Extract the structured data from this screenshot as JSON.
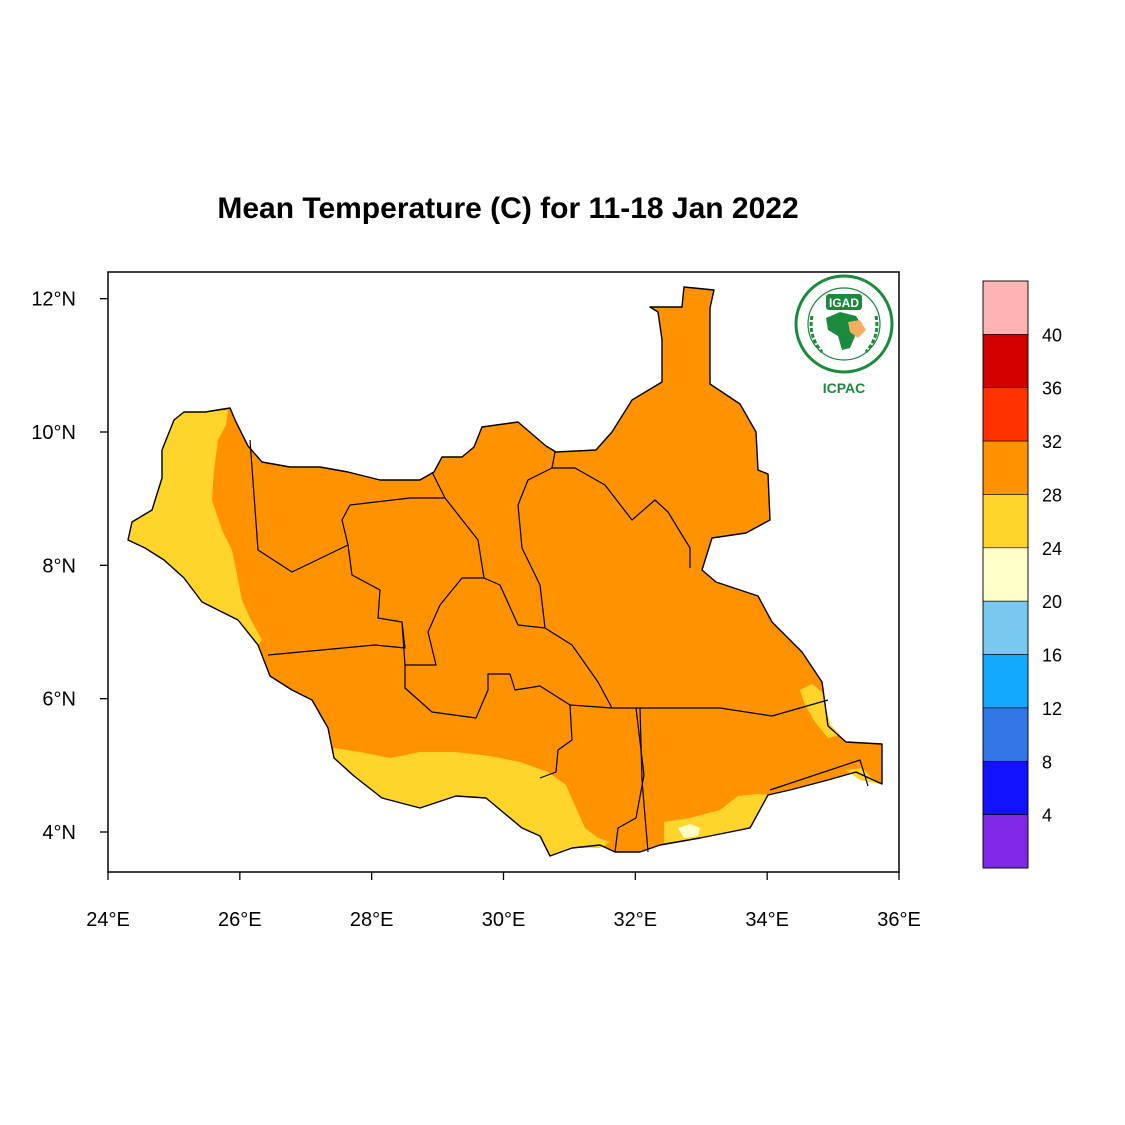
{
  "title": "Mean Temperature (C) for 11-18 Jan 2022",
  "map": {
    "lon_range": [
      24,
      36
    ],
    "lat_range": [
      3.4,
      12.4
    ],
    "x_ticks": [
      {
        "value": 24,
        "label": "24°E"
      },
      {
        "value": 26,
        "label": "26°E"
      },
      {
        "value": 28,
        "label": "28°E"
      },
      {
        "value": 30,
        "label": "30°E"
      },
      {
        "value": 32,
        "label": "32°E"
      },
      {
        "value": 34,
        "label": "34°E"
      },
      {
        "value": 36,
        "label": "36°E"
      }
    ],
    "y_ticks": [
      {
        "value": 4,
        "label": "4°N"
      },
      {
        "value": 6,
        "label": "6°N"
      },
      {
        "value": 8,
        "label": "8°N"
      },
      {
        "value": 10,
        "label": "10°N"
      },
      {
        "value": 12,
        "label": "12°N"
      }
    ],
    "dominant_class_color": "#ff9200",
    "secondary_class_color": "#ffd42b",
    "tertiary_class_color": "#ffffc8"
  },
  "logo": {
    "emblem_text": "IGAD",
    "caption": "ICPAC",
    "color": "#1a8a3c"
  },
  "legend": {
    "colors": [
      "#ffb4b4",
      "#d40000",
      "#ff3200",
      "#ff9200",
      "#ffd42b",
      "#ffffc8",
      "#78c8f0",
      "#12aaff",
      "#3276e8",
      "#1212ff",
      "#8228e8"
    ],
    "labels": [
      "40",
      "36",
      "32",
      "28",
      "24",
      "20",
      "16",
      "12",
      "8",
      "4"
    ]
  }
}
